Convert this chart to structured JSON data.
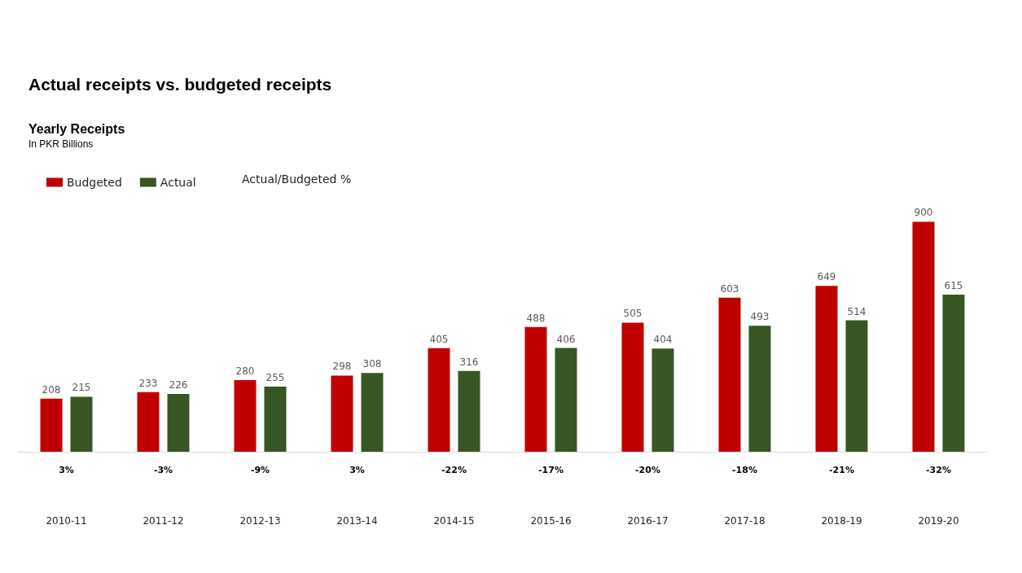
{
  "chart_data": {
    "type": "bar",
    "title": "Actual receipts vs. budgeted receipts",
    "subtitle": "Yearly Receipts",
    "categories": [
      "2010-11",
      "2011-12",
      "2012-13",
      "2013-14",
      "2014-15",
      "2015-16",
      "2016-17",
      "2017-18",
      "2018-19",
      "2019-20"
    ],
    "series": [
      {
        "name": "Budgeted",
        "color": "#c00000",
        "values": [
          208,
          233,
          280,
          298,
          405,
          488,
          505,
          603,
          649,
          900
        ]
      },
      {
        "name": "Actual",
        "color": "#375623",
        "values": [
          215,
          226,
          255,
          308,
          316,
          406,
          404,
          493,
          514,
          615
        ]
      }
    ],
    "tick_labels": "x",
    "data_labels": true,
    "legend": "top left",
    "annotations": [
      "In PKR Billions",
      "Actual/Budgeted %",
      "3%",
      "-3%",
      "-9%",
      "3%",
      "-22%",
      "-17%",
      "-20%",
      "-18%",
      "-21%",
      "-32%"
    ]
  }
}
